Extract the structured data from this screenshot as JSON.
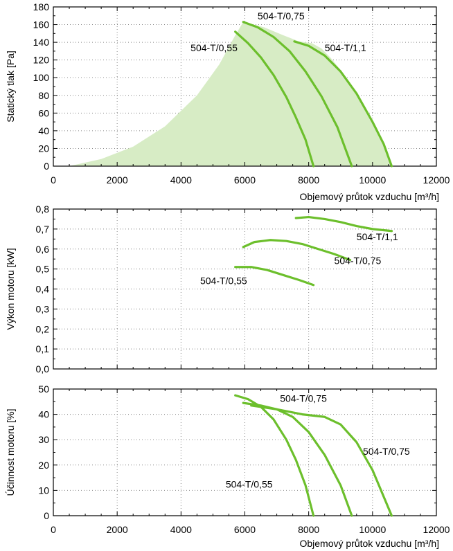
{
  "chart_data": [
    {
      "type": "line",
      "ylabel": "Statický tlak [Pa]",
      "xlabel": "Objemový průtok vzduchu [m³/h]",
      "xlim": [
        0,
        12000
      ],
      "ylim": [
        0,
        180
      ],
      "xticks": [
        "0",
        "2000",
        "4000",
        "6000",
        "8000",
        "10000",
        "12000"
      ],
      "yticks": [
        "0",
        "20",
        "40",
        "60",
        "80",
        "100",
        "120",
        "140",
        "160",
        "180"
      ],
      "grid": "dotted",
      "area_color": "#d7ecc5",
      "line_color": "#6cbf2c",
      "area": {
        "x": [
          500,
          1500,
          2500,
          3500,
          4500,
          5200,
          5700,
          5950,
          6600,
          7200,
          7700,
          8100,
          8400,
          8700,
          9100,
          9600,
          10000,
          10300,
          10600,
          10600,
          500
        ],
        "y": [
          0,
          8,
          22,
          45,
          80,
          115,
          148,
          163,
          157,
          148,
          141,
          139,
          133,
          122,
          104,
          75,
          50,
          28,
          0,
          0,
          0
        ]
      },
      "series": [
        {
          "name": "504-T/0,55",
          "x": [
            5700,
            6100,
            6500,
            6900,
            7300,
            7600,
            7900,
            8150
          ],
          "y": [
            152,
            139,
            123,
            103,
            78,
            55,
            30,
            0
          ]
        },
        {
          "name": "504-T/0,75",
          "x": [
            5950,
            6400,
            6900,
            7400,
            7900,
            8400,
            8900,
            9350
          ],
          "y": [
            163,
            157,
            146,
            130,
            107,
            79,
            44,
            0
          ]
        },
        {
          "name": "504-T/1,1",
          "x": [
            7550,
            8000,
            8500,
            9000,
            9500,
            10000,
            10350,
            10600
          ],
          "y": [
            141,
            136,
            125,
            107,
            82,
            50,
            25,
            0
          ]
        }
      ],
      "annotations": [
        {
          "text": "504-T/0,75",
          "x": 6400,
          "y": 166
        },
        {
          "text": "504-T/0,55",
          "x": 4300,
          "y": 130
        },
        {
          "text": "504-T/1,1",
          "x": 8500,
          "y": 130
        }
      ]
    },
    {
      "type": "line",
      "ylabel": "Výkon motoru [kW]",
      "xlim": [
        0,
        12000
      ],
      "ylim": [
        0,
        0.8
      ],
      "xticks": [
        "0",
        "2000",
        "4000",
        "6000",
        "8000",
        "10000",
        "12000"
      ],
      "yticks": [
        "0,0",
        "0,1",
        "0,2",
        "0,3",
        "0,4",
        "0,5",
        "0,6",
        "0,7",
        "0,8"
      ],
      "grid": "dotted",
      "line_color": "#6cbf2c",
      "series": [
        {
          "name": "504-T/0,55",
          "x": [
            5700,
            6200,
            6700,
            7200,
            7700,
            8150
          ],
          "y": [
            0.51,
            0.51,
            0.495,
            0.47,
            0.445,
            0.42
          ]
        },
        {
          "name": "504-T/0,75",
          "x": [
            5950,
            6300,
            6800,
            7300,
            7800,
            8300,
            8800,
            9300
          ],
          "y": [
            0.61,
            0.635,
            0.645,
            0.64,
            0.625,
            0.6,
            0.575,
            0.545
          ]
        },
        {
          "name": "504-T/1,1",
          "x": [
            7600,
            8000,
            8500,
            9000,
            9500,
            10000,
            10600
          ],
          "y": [
            0.755,
            0.76,
            0.75,
            0.735,
            0.715,
            0.7,
            0.69
          ]
        }
      ],
      "annotations": [
        {
          "text": "504-T/1,1",
          "x": 9500,
          "y": 0.645
        },
        {
          "text": "504-T/0,75",
          "x": 8800,
          "y": 0.525
        },
        {
          "text": "504-T/0,55",
          "x": 4600,
          "y": 0.425
        }
      ]
    },
    {
      "type": "line",
      "ylabel": "Účinnost motoru [%]",
      "xlabel": "Objemový průtok vzduchu [m³/h]",
      "xlim": [
        0,
        12000
      ],
      "ylim": [
        0,
        50
      ],
      "xticks": [
        "0",
        "2000",
        "4000",
        "6000",
        "8000",
        "10000",
        "12000"
      ],
      "yticks": [
        "0",
        "10",
        "20",
        "30",
        "40",
        "50"
      ],
      "grid": "dotted",
      "line_color": "#6cbf2c",
      "series": [
        {
          "name": "504-T/0,55",
          "x": [
            5700,
            6100,
            6500,
            6900,
            7300,
            7600,
            7900,
            8150
          ],
          "y": [
            47.5,
            46,
            43,
            38,
            30,
            22,
            12,
            0
          ]
        },
        {
          "name": "504-T/0,75",
          "x": [
            5950,
            6500,
            7000,
            7500,
            8000,
            8500,
            9000,
            9350
          ],
          "y": [
            44.5,
            43.5,
            42,
            39,
            33,
            24,
            12,
            0
          ]
        },
        {
          "name": "504-T/0,75",
          "x": [
            6200,
            7000,
            7800,
            8500,
            9000,
            9500,
            10000,
            10600
          ],
          "y": [
            43.5,
            42,
            40,
            39,
            36,
            29,
            18,
            0
          ]
        }
      ],
      "annotations": [
        {
          "text": "504-T/0,75",
          "x": 7100,
          "y": 45
        },
        {
          "text": "504-T/0,75",
          "x": 9700,
          "y": 24
        },
        {
          "text": "504-T/0,55",
          "x": 5400,
          "y": 11
        }
      ]
    }
  ]
}
